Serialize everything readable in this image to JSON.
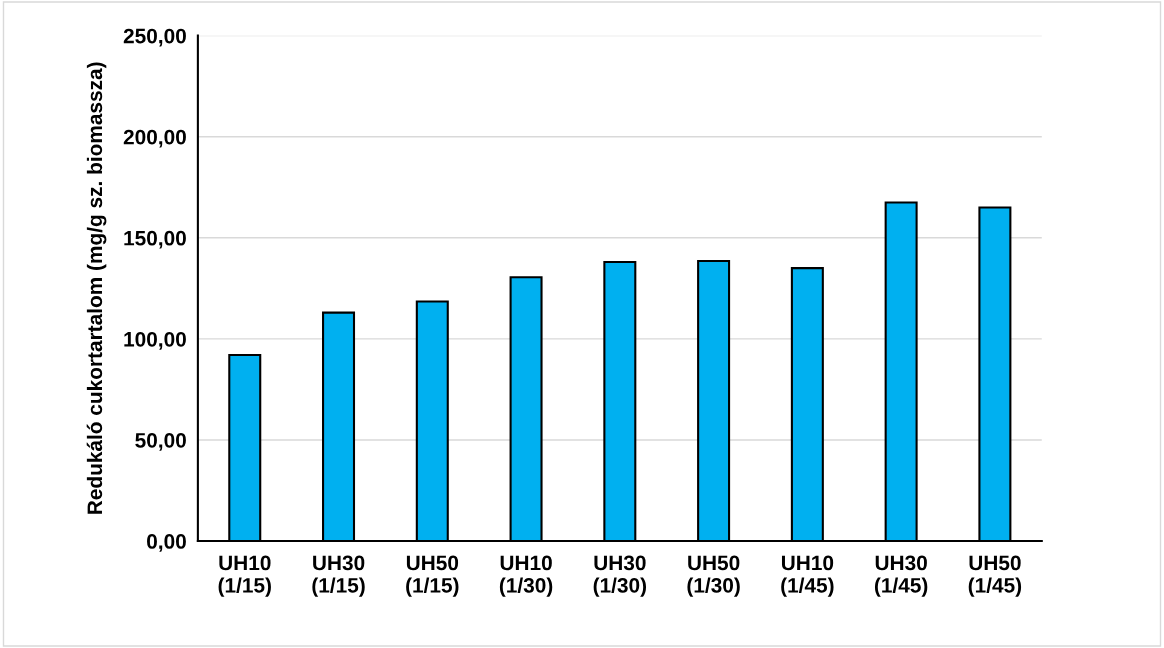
{
  "chart_data": {
    "type": "bar",
    "ylabel": "Redukáló cukortartalom (mg/g sz. biomassza)",
    "categories": [
      "UH10\n(1/15)",
      "UH30\n(1/15)",
      "UH50\n(1/15)",
      "UH10\n(1/30)",
      "UH30\n(1/30)",
      "UH50\n(1/30)",
      "UH10\n(1/45)",
      "UH30\n(1/45)",
      "UH50\n(1/45)"
    ],
    "values": [
      92,
      113,
      118.5,
      130.5,
      138,
      138.5,
      135,
      167.5,
      165
    ],
    "color": "#00b0f0",
    "ylim": [
      0,
      250
    ],
    "yticks": [
      {
        "value": 0,
        "label": "0,00"
      },
      {
        "value": 50,
        "label": "50,00"
      },
      {
        "value": 100,
        "label": "100,00"
      },
      {
        "value": 150,
        "label": "150,00"
      },
      {
        "value": 200,
        "label": "200,00"
      },
      {
        "value": 250,
        "label": "250,00"
      }
    ],
    "grid": "y"
  }
}
